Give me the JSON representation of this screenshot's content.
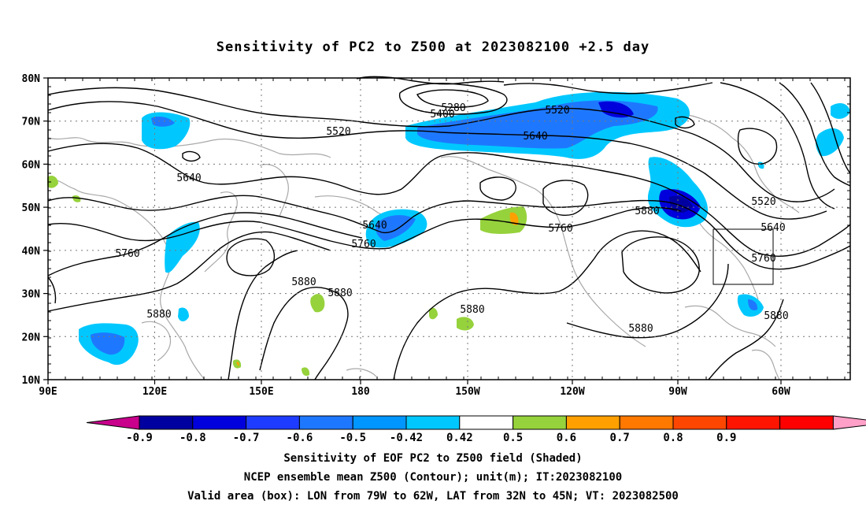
{
  "title": "Sensitivity of PC2 to Z500 at 2023082100 +2.5 day",
  "map": {
    "lat_labels": [
      "80N",
      "70N",
      "60N",
      "50N",
      "40N",
      "30N",
      "20N",
      "10N"
    ],
    "lon_labels": [
      "90E",
      "120E",
      "150E",
      "180",
      "150W",
      "120W",
      "90W",
      "60W"
    ],
    "contour_labels": [
      "5280",
      "5400",
      "5520",
      "5520",
      "5520",
      "5640",
      "5640",
      "5640",
      "5640",
      "5760",
      "5760",
      "5760",
      "5760",
      "5880",
      "5880",
      "5880",
      "5880",
      "5880",
      "5880",
      "5880"
    ]
  },
  "colorbar": {
    "labels": [
      "-0.9",
      "-0.8",
      "-0.7",
      "-0.6",
      "-0.5",
      "-0.42",
      "0.42",
      "0.5",
      "0.6",
      "0.7",
      "0.8",
      "0.9"
    ],
    "colors": [
      "#c8008c",
      "#0000a0",
      "#0000dc",
      "#1e3cff",
      "#1e78ff",
      "#0096ff",
      "#00c8ff",
      "#ffffff",
      "#96d23c",
      "#ffa000",
      "#ff7800",
      "#ff4600",
      "#ff1400",
      "#ff0000",
      "#ffa0c8"
    ]
  },
  "captions": {
    "line1": "Sensitivity of EOF PC2 to Z500 field (Shaded)",
    "line2": "NCEP ensemble mean Z500 (Contour); unit(m); IT:2023082100",
    "line3": "Valid area (box): LON from 79W to 62W, LAT from 32N to 45N; VT: 2023082500"
  }
}
